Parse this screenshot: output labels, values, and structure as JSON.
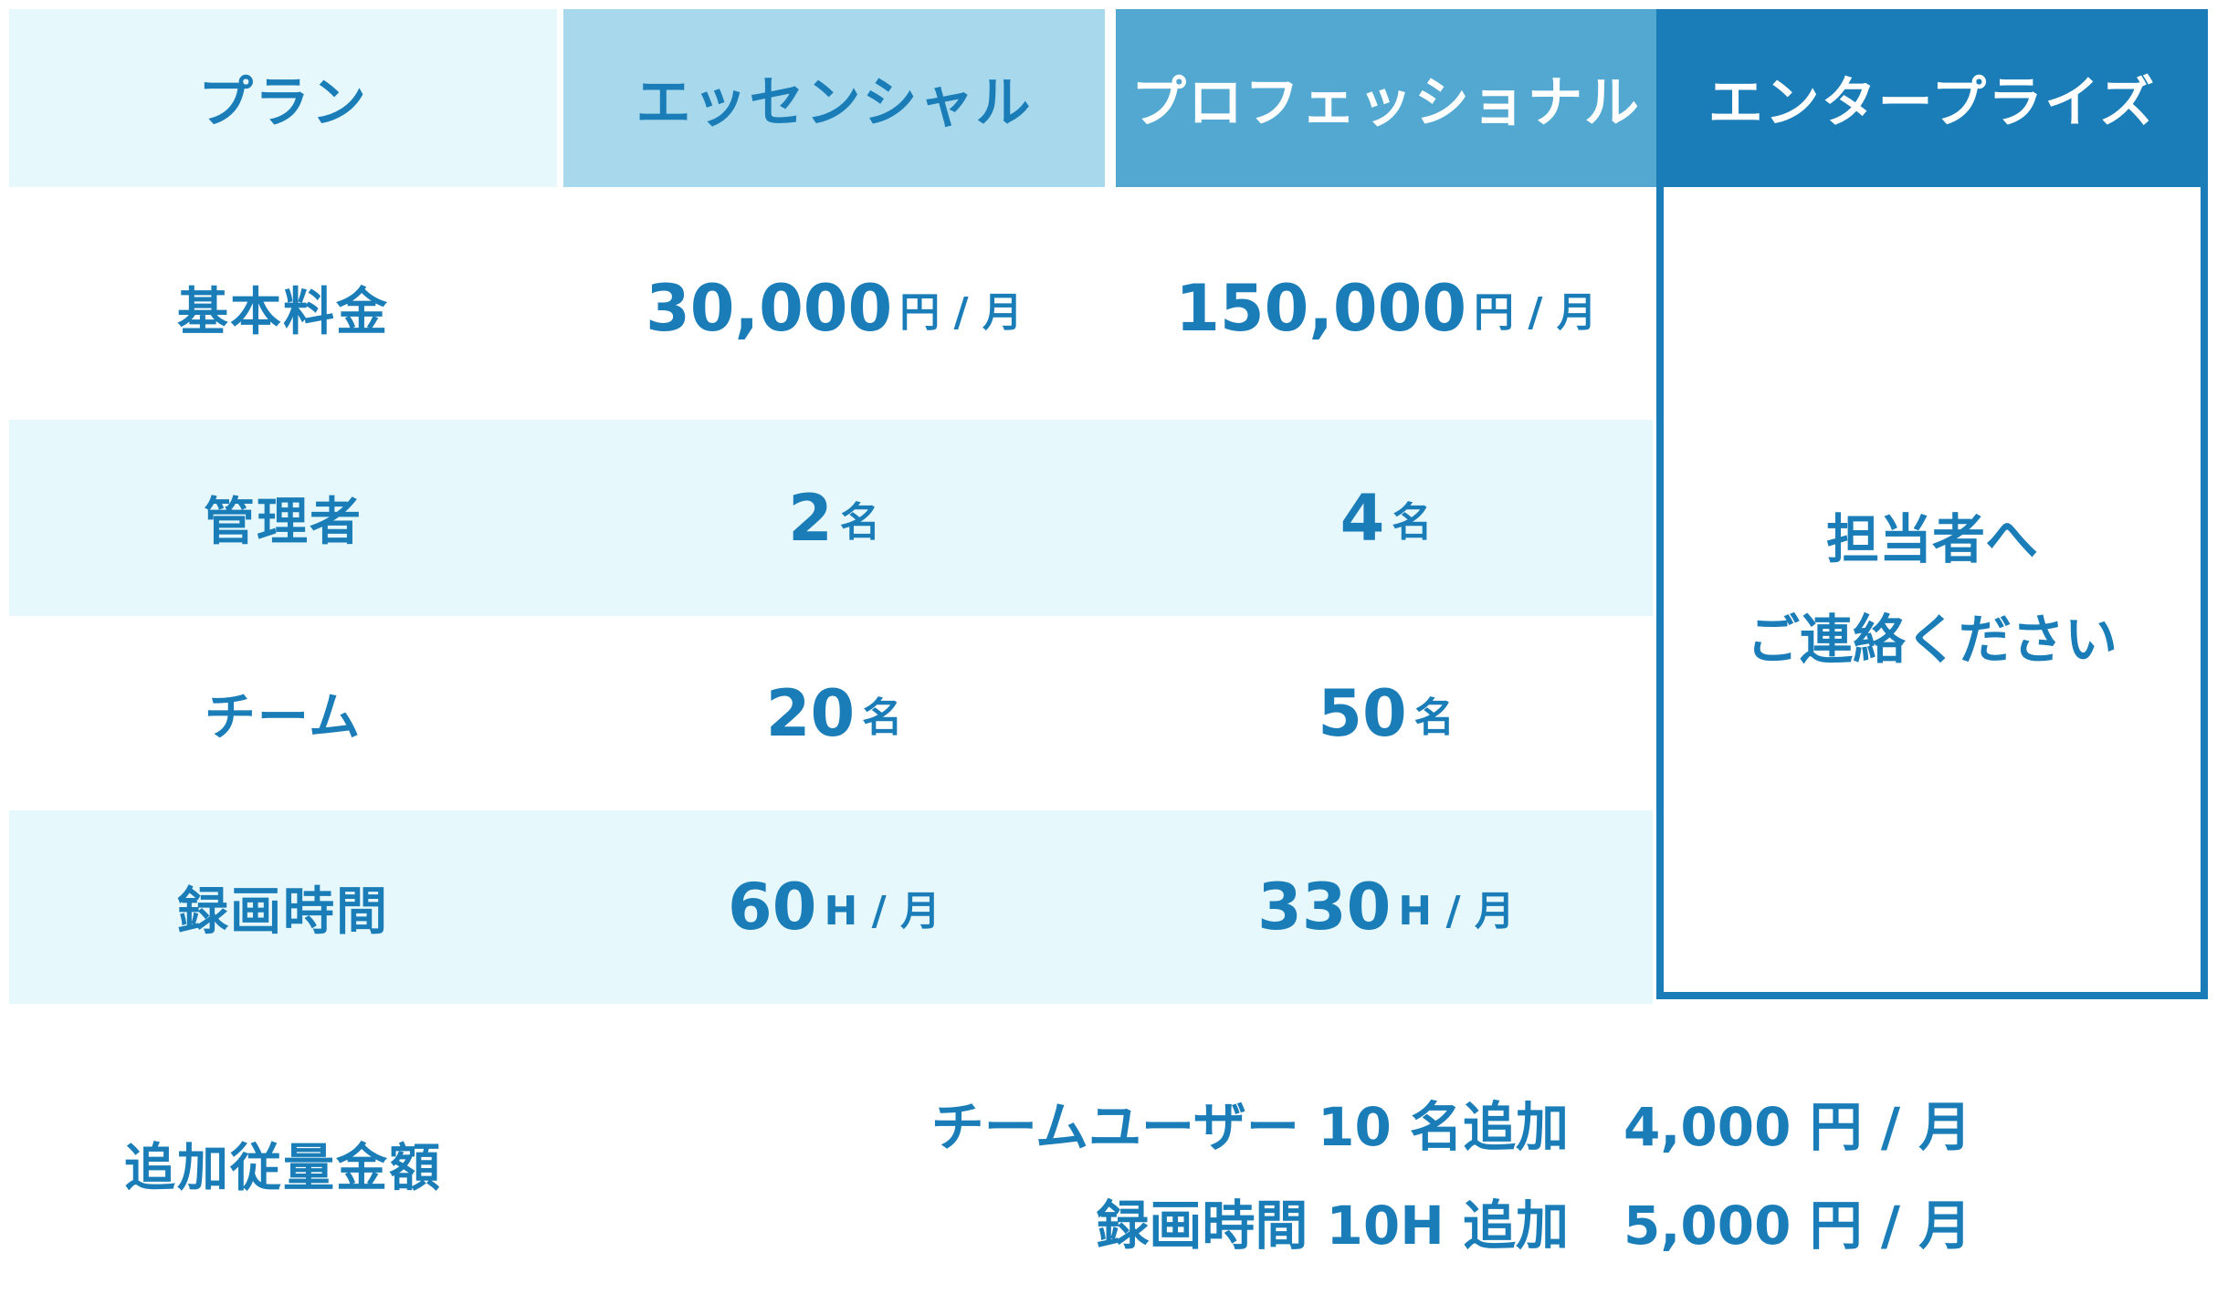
{
  "header": {
    "plan_label": "プラン",
    "plans": [
      "エッセンシャル",
      "プロフェッショナル",
      "エンタープライズ"
    ]
  },
  "rows": [
    {
      "label": "基本料金",
      "essential": {
        "value": "30,000",
        "unit": "円 / 月"
      },
      "professional": {
        "value": "150,000",
        "unit": "円 / 月"
      }
    },
    {
      "label": "管理者",
      "essential": {
        "value": "2",
        "unit": "名"
      },
      "professional": {
        "value": "4",
        "unit": "名"
      }
    },
    {
      "label": "チーム",
      "essential": {
        "value": "20",
        "unit": "名"
      },
      "professional": {
        "value": "50",
        "unit": "名"
      }
    },
    {
      "label": "録画時間",
      "essential": {
        "value": "60",
        "unit": "H / 月"
      },
      "professional": {
        "value": "330",
        "unit": "H / 月"
      }
    }
  ],
  "enterprise": {
    "line1": "担当者へ",
    "line2": "ご連絡ください"
  },
  "extras": {
    "label": "追加従量金額",
    "items": [
      {
        "name": "チームユーザー 10 名追加",
        "price": "4,000 円 / 月"
      },
      {
        "name": "録画時間 10H 追加",
        "price": "5,000 円 / 月"
      }
    ]
  },
  "colors": {
    "header_plan_bg": "#e6f8fc",
    "header_essential_bg": "#a8d8eb",
    "header_professional_bg": "#52a8d0",
    "header_enterprise_bg": "#1a7db8",
    "row_band_bg": "#e6f8fc",
    "text": "#1a7db8"
  }
}
